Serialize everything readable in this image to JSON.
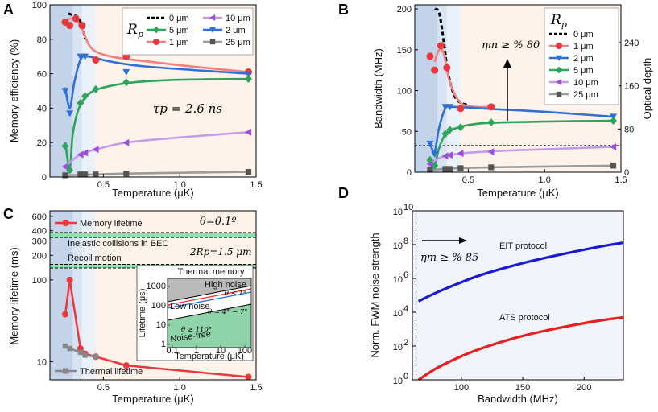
{
  "chart_data": [
    {
      "id": "A",
      "type": "scatter",
      "panel_label": "A",
      "xlabel": "Temperature (μK)",
      "ylabel": "Memory efficiency (%)",
      "xlim": [
        0.15,
        1.5
      ],
      "ylim": [
        0,
        100
      ],
      "xticks": [
        0.5,
        1.0,
        1.5
      ],
      "xtick_labels": [
        "0.5",
        "1.0",
        "1.5"
      ],
      "yticks": [
        0,
        20,
        40,
        60,
        80,
        100
      ],
      "ytick_labels": [
        "0",
        "20",
        "40",
        "60",
        "80",
        "100"
      ],
      "legend_title": "R",
      "legend_title_sub": "p",
      "legend_position": "top-right",
      "annotation": "τp = 2.6 ns",
      "series": [
        {
          "name": "0 μm",
          "color": "#000000",
          "marker": "none",
          "dashed": true,
          "points": [],
          "curve": [
            [
              0.27,
              95
            ],
            [
              0.3,
              94
            ],
            [
              0.33,
              93
            ],
            [
              0.36,
              88
            ],
            [
              0.38,
              80
            ]
          ]
        },
        {
          "name": "1 μm",
          "color": "#e8383d",
          "curve_color": "#f08080",
          "marker": "circle",
          "points": [
            [
              0.25,
              90
            ],
            [
              0.28,
              88
            ],
            [
              0.32,
              92
            ],
            [
              0.36,
              88
            ],
            [
              0.45,
              68
            ],
            [
              0.65,
              70
            ],
            [
              1.45,
              61
            ]
          ],
          "curve": [
            [
              0.25,
              91
            ],
            [
              0.3,
              92
            ],
            [
              0.35,
              88
            ],
            [
              0.42,
              75
            ],
            [
              0.55,
              70
            ],
            [
              0.8,
              67
            ],
            [
              1.1,
              64
            ],
            [
              1.45,
              61
            ]
          ]
        },
        {
          "name": "2 μm",
          "color": "#2f6fd6",
          "marker": "triangle-down",
          "points": [
            [
              0.25,
              50
            ],
            [
              0.28,
              37
            ],
            [
              0.35,
              70
            ],
            [
              0.38,
              70
            ],
            [
              0.65,
              61
            ],
            [
              1.45,
              60
            ]
          ],
          "curve": [
            [
              0.25,
              52
            ],
            [
              0.28,
              40
            ],
            [
              0.31,
              55
            ],
            [
              0.35,
              68
            ],
            [
              0.4,
              70
            ],
            [
              0.55,
              67
            ],
            [
              0.8,
              64
            ],
            [
              1.45,
              60
            ]
          ]
        },
        {
          "name": "5 μm",
          "color": "#2ea35a",
          "marker": "diamond",
          "points": [
            [
              0.25,
              18
            ],
            [
              0.28,
              4
            ],
            [
              0.35,
              43
            ],
            [
              0.38,
              47
            ],
            [
              0.45,
              51
            ],
            [
              0.65,
              55
            ],
            [
              1.45,
              57
            ]
          ],
          "curve": [
            [
              0.25,
              20
            ],
            [
              0.28,
              5
            ],
            [
              0.3,
              25
            ],
            [
              0.34,
              40
            ],
            [
              0.4,
              48
            ],
            [
              0.5,
              52
            ],
            [
              0.7,
              55
            ],
            [
              1.0,
              56.5
            ],
            [
              1.45,
              57
            ]
          ]
        },
        {
          "name": "10 μm",
          "color": "#9a4fd6",
          "curve_color": "#c49be8",
          "marker": "triangle-left",
          "points": [
            [
              0.25,
              6
            ],
            [
              0.35,
              13
            ],
            [
              0.38,
              14
            ],
            [
              0.45,
              16
            ],
            [
              0.65,
              20
            ],
            [
              1.45,
              26
            ]
          ],
          "curve": [
            [
              0.25,
              6
            ],
            [
              0.3,
              10
            ],
            [
              0.36,
              13.5
            ],
            [
              0.45,
              16
            ],
            [
              0.65,
              20
            ],
            [
              1.0,
              23
            ],
            [
              1.45,
              26
            ]
          ]
        },
        {
          "name": "25 μm",
          "color": "#555555",
          "curve_color": "#9a9a9a",
          "marker": "square",
          "points": [
            [
              0.25,
              1
            ],
            [
              0.35,
              1.5
            ],
            [
              0.38,
              1.5
            ],
            [
              0.45,
              1.5
            ],
            [
              0.65,
              2
            ],
            [
              1.45,
              3
            ]
          ],
          "curve": [
            [
              0.25,
              1
            ],
            [
              0.45,
              1.5
            ],
            [
              0.65,
              2
            ],
            [
              1.0,
              2.5
            ],
            [
              1.45,
              3
            ]
          ]
        }
      ]
    },
    {
      "id": "B",
      "type": "scatter",
      "panel_label": "B",
      "xlabel": "Temperature (μK)",
      "ylabel": "Bandwidth (MHz)",
      "y2label": "Optical depth",
      "xlim": [
        0.15,
        1.5
      ],
      "ylim": [
        0,
        205
      ],
      "y2lim": [
        0,
        310
      ],
      "xticks": [
        0.5,
        1.0,
        1.5
      ],
      "xtick_labels": [
        "0.5",
        "1.0",
        "1.5"
      ],
      "yticks": [
        0,
        50,
        100,
        150,
        200
      ],
      "ytick_labels": [
        "0",
        "50",
        "100",
        "150",
        "200"
      ],
      "y2ticks": [
        0,
        80,
        160,
        240
      ],
      "y2tick_labels": [
        "0",
        "80",
        "160",
        "240"
      ],
      "threshold_y": 33,
      "annotation": "ηm ≥ % 80",
      "legend_title": "R",
      "legend_title_sub": "p",
      "legend_position": "top-right",
      "series": [
        {
          "name": "0 μm",
          "color": "#000000",
          "marker": "none",
          "dashed": true,
          "points": [],
          "curve": [
            [
              0.28,
              200
            ],
            [
              0.31,
              195
            ],
            [
              0.34,
              160
            ],
            [
              0.37,
              120
            ],
            [
              0.42,
              90
            ],
            [
              0.5,
              82
            ]
          ]
        },
        {
          "name": "1 μm",
          "color": "#e8383d",
          "curve_color": "#f08080",
          "marker": "circle",
          "points": [
            [
              0.25,
              142
            ],
            [
              0.28,
              125
            ],
            [
              0.32,
              155
            ],
            [
              0.36,
              128
            ],
            [
              0.45,
              78
            ],
            [
              0.65,
              80
            ]
          ],
          "curve": [
            [
              0.28,
              135
            ],
            [
              0.31,
              150
            ],
            [
              0.34,
              145
            ],
            [
              0.38,
              110
            ],
            [
              0.45,
              85
            ],
            [
              0.55,
              80
            ],
            [
              0.65,
              80
            ]
          ]
        },
        {
          "name": "2 μm",
          "color": "#2f6fd6",
          "marker": "triangle-down",
          "points": [
            [
              0.25,
              35
            ],
            [
              0.28,
              22
            ],
            [
              0.35,
              80
            ],
            [
              0.38,
              80
            ],
            [
              1.45,
              68
            ]
          ],
          "curve": [
            [
              0.25,
              35
            ],
            [
              0.28,
              25
            ],
            [
              0.31,
              55
            ],
            [
              0.35,
              78
            ],
            [
              0.4,
              80
            ],
            [
              0.7,
              77
            ],
            [
              1.0,
              74
            ],
            [
              1.45,
              68
            ]
          ]
        },
        {
          "name": "5 μm",
          "color": "#2ea35a",
          "marker": "diamond",
          "points": [
            [
              0.25,
              15
            ],
            [
              0.28,
              8
            ],
            [
              0.35,
              47
            ],
            [
              0.38,
              52
            ],
            [
              0.45,
              55
            ],
            [
              0.65,
              61
            ],
            [
              1.45,
              63
            ]
          ],
          "curve": [
            [
              0.25,
              16
            ],
            [
              0.28,
              9
            ],
            [
              0.31,
              30
            ],
            [
              0.35,
              46
            ],
            [
              0.42,
              54
            ],
            [
              0.6,
              60
            ],
            [
              1.0,
              62
            ],
            [
              1.45,
              63
            ]
          ]
        },
        {
          "name": "10 μm",
          "color": "#9a4fd6",
          "curve_color": "#c49be8",
          "marker": "triangle-left",
          "points": [
            [
              0.25,
              10
            ],
            [
              0.35,
              20
            ],
            [
              0.38,
              21
            ],
            [
              0.45,
              23
            ],
            [
              0.65,
              25
            ],
            [
              1.45,
              31
            ]
          ],
          "curve": [
            [
              0.25,
              10
            ],
            [
              0.32,
              18
            ],
            [
              0.45,
              23
            ],
            [
              0.7,
              26
            ],
            [
              1.0,
              28
            ],
            [
              1.45,
              31
            ]
          ]
        },
        {
          "name": "25 μm",
          "color": "#555555",
          "curve_color": "#9a9a9a",
          "marker": "square",
          "points": [
            [
              0.25,
              3
            ],
            [
              0.35,
              4
            ],
            [
              0.38,
              4
            ],
            [
              0.45,
              5
            ],
            [
              0.65,
              6
            ],
            [
              1.45,
              8
            ]
          ],
          "curve": [
            [
              0.25,
              3
            ],
            [
              0.45,
              5
            ],
            [
              0.65,
              6
            ],
            [
              1.0,
              7
            ],
            [
              1.45,
              8
            ]
          ]
        }
      ]
    },
    {
      "id": "C",
      "type": "line",
      "panel_label": "C",
      "xlabel": "Temperature (μK)",
      "ylabel": "Memory lifetime (ms)",
      "xlim": [
        0.15,
        1.5
      ],
      "ylim": [
        6,
        700
      ],
      "yscale": "log",
      "xticks": [
        0.5,
        1.0,
        1.5
      ],
      "xtick_labels": [
        "0.5",
        "1.0",
        "1.5"
      ],
      "yticks": [
        10,
        100,
        200,
        300,
        400,
        600
      ],
      "ytick_labels": [
        "10",
        "100",
        "200",
        "300",
        "400",
        "600"
      ],
      "annotations": {
        "theta": "θ=0.1º",
        "inelastic": "Inelastic collisions in BEC",
        "rp": "2Rp=1.5 μm",
        "recoil": "Recoil motion"
      },
      "bands": {
        "inelastic_y": [
          330,
          380
        ],
        "recoil_y": [
          140,
          155
        ]
      },
      "series": [
        {
          "name": "Memory lifetime",
          "color": "#e8383d",
          "points": [
            [
              0.25,
              38
            ],
            [
              0.28,
              100
            ],
            [
              0.35,
              14.5
            ],
            [
              0.38,
              12.5
            ],
            [
              0.45,
              11.5
            ],
            [
              0.65,
              9
            ],
            [
              1.45,
              6.5
            ]
          ]
        },
        {
          "name": "Thermal lifetime",
          "color": "#888888",
          "points": [
            [
              0.25,
              15.5
            ],
            [
              0.28,
              14.5
            ],
            [
              0.35,
              13
            ],
            [
              0.38,
              12
            ],
            [
              0.45,
              11.5
            ]
          ]
        }
      ],
      "inset": {
        "title": "Thermal memory",
        "xlabel": "Temperature (μK)",
        "ylabel": "Lifetime (μs)",
        "xtick_labels": [
          "0.1",
          "1",
          "10",
          "100"
        ],
        "ytick_labels": [
          "1",
          "10",
          "100",
          "1000"
        ],
        "regions": [
          {
            "label": "High noise",
            "sublabel": "θ ≤ 1°",
            "color": "#b9b9b9"
          },
          {
            "label": "Low noise",
            "sublabel": "θ = 4° − 7°",
            "color": "#ffffff"
          },
          {
            "label": "Noise-free",
            "sublabel": "θ ≥ 110°",
            "color": "#8fd3a8"
          }
        ]
      }
    },
    {
      "id": "D",
      "type": "line",
      "panel_label": "D",
      "xlabel": "Bandwidth (MHz)",
      "ylabel": "Norm. FWM noise strength",
      "xlim": [
        60,
        232
      ],
      "ylim": [
        1,
        10000000000.0
      ],
      "yscale": "log",
      "xticks": [
        100,
        150,
        200
      ],
      "xtick_labels": [
        "100",
        "150",
        "200"
      ],
      "yticks": [
        1,
        100,
        10000,
        1000000,
        100000000,
        10000000000
      ],
      "ytick_labels": [
        "10",
        "10",
        "10",
        "10",
        "10",
        "10"
      ],
      "ytick_exponents": [
        "0",
        "2",
        "4",
        "6",
        "8",
        "10"
      ],
      "threshold_x": 63,
      "annotation": "ηm ≥ % 85",
      "series": [
        {
          "name": "EIT protocol",
          "color": "#1a1ad6",
          "points": [
            [
              65,
              45000.0
            ],
            [
              80,
              150000.0
            ],
            [
              100,
              600000.0
            ],
            [
              120,
              2000000.0
            ],
            [
              150,
              8000000.0
            ],
            [
              180,
              25000000.0
            ],
            [
              210,
              70000000.0
            ],
            [
              232,
              130000000.0
            ]
          ]
        },
        {
          "name": "ATS protocol",
          "color": "#e62020",
          "points": [
            [
              65,
              1
            ],
            [
              80,
              5
            ],
            [
              100,
              25
            ],
            [
              120,
              90
            ],
            [
              150,
              400
            ],
            [
              180,
              1200
            ],
            [
              210,
              3000
            ],
            [
              232,
              5000
            ]
          ]
        }
      ]
    }
  ]
}
